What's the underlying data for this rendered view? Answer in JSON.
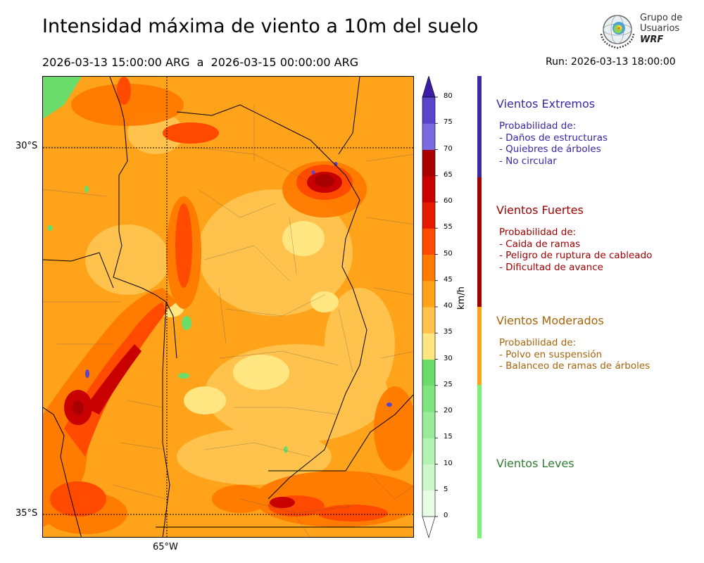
{
  "header": {
    "title": "Intensidad máxima de viento a 10m del suelo",
    "period": "2026-03-13 15:00:00 ARG  a  2026-03-15 00:00:00 ARG",
    "run": "Run: 2026-03-13 18:00:00"
  },
  "logo": {
    "line1": "Grupo de",
    "line2": "Usuarios",
    "line3": "WRF"
  },
  "map": {
    "lat_labels": [
      "30°S",
      "35°S"
    ],
    "lon_labels": [
      "65°W"
    ]
  },
  "colorbar": {
    "unit": "km/h",
    "ticks": [
      "0",
      "5",
      "10",
      "15",
      "20",
      "25",
      "30",
      "35",
      "40",
      "45",
      "50",
      "55",
      "60",
      "65",
      "70",
      "75",
      "80"
    ],
    "colors": [
      "#e6fde6",
      "#ccf8cc",
      "#b2f2b2",
      "#99eb99",
      "#80e480",
      "#6bdc6b",
      "#ffe680",
      "#ffc34d",
      "#ffa31a",
      "#ff7a00",
      "#ff4a00",
      "#e61a00",
      "#c80000",
      "#a80000",
      "#7a6ae0",
      "#5b43cc",
      "#4a2db8",
      "#3a1ea8"
    ]
  },
  "legend": {
    "categories": [
      {
        "title": "Vientos Extremos",
        "color": "#3b25a8",
        "bar_color": "#3b2aa6",
        "desc_header": "Probabilidad de:",
        "items": [
          "- Daños de estructuras",
          "- Quiebres de árboles",
          "- No circular"
        ]
      },
      {
        "title": "Vientos Fuertes",
        "color": "#a10000",
        "bar_color": "#a30000",
        "desc_header": "Probabilidad de:",
        "items": [
          "- Caida de ramas",
          "- Peligro de ruptura de cableado",
          "- Dificultad de avance"
        ]
      },
      {
        "title": "Vientos Moderados",
        "color": "#a8640a",
        "bar_color": "#ffa31a",
        "desc_header": "Probabilidad de:",
        "items": [
          "- Polvo en suspensión",
          "- Balanceo de ramas de árboles"
        ]
      },
      {
        "title": "Vientos Leves",
        "color": "#2e7d32",
        "bar_color": "#7ef07a",
        "desc_header": "",
        "items": []
      }
    ]
  }
}
